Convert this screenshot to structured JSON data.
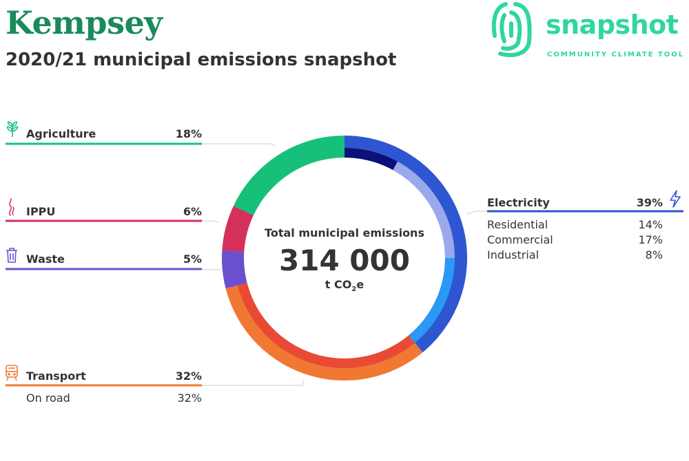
{
  "header": {
    "title": "Kempsey",
    "subtitle": "2020/21 municipal emissions snapshot"
  },
  "logo": {
    "word": "snapshot",
    "tagline": "COMMUNITY CLIMATE TOOL",
    "color": "#2fd6a0"
  },
  "center": {
    "label": "Total municipal emissions",
    "value": "314 000",
    "unit_prefix": "t CO",
    "unit_sub": "2",
    "unit_suffix": "e"
  },
  "chart_data": {
    "type": "pie",
    "title": "2020/21 municipal emissions snapshot",
    "total": "314 000",
    "unit": "t CO2e",
    "sectors": [
      {
        "name": "Electricity",
        "percent": "39%",
        "value": 39,
        "color": "#2e56d0",
        "icon": "lightning-icon",
        "subsectors": [
          {
            "name": "Industrial",
            "percent": "8%",
            "value": 8,
            "color": "#0b1178"
          },
          {
            "name": "Commercial",
            "percent": "17%",
            "value": 17,
            "color": "#9aa9ec"
          },
          {
            "name": "Residential",
            "percent": "14%",
            "value": 14,
            "color": "#2a98f5"
          }
        ]
      },
      {
        "name": "Transport",
        "percent": "32%",
        "value": 32,
        "color": "#f07832",
        "icon": "train-icon",
        "subsectors": [
          {
            "name": "On road",
            "percent": "32%",
            "value": 32,
            "color": "#e84a35"
          }
        ]
      },
      {
        "name": "Waste",
        "percent": "5%",
        "value": 5,
        "color": "#6a4fcf",
        "icon": "bin-icon",
        "subsectors": []
      },
      {
        "name": "IPPU",
        "percent": "6%",
        "value": 6,
        "color": "#d4305a",
        "icon": "smoke-icon",
        "subsectors": []
      },
      {
        "name": "Agriculture",
        "percent": "18%",
        "value": 18,
        "color": "#17c07a",
        "icon": "plant-icon",
        "subsectors": []
      }
    ]
  }
}
